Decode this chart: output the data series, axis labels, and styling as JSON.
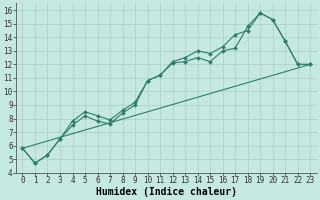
{
  "xlabel": "Humidex (Indice chaleur)",
  "bg_color": "#c5e8e0",
  "line_color": "#2e7d6e",
  "grid_color": "#aacfc8",
  "xlim": [
    -0.5,
    23.5
  ],
  "ylim": [
    4,
    16.5
  ],
  "xticks": [
    0,
    1,
    2,
    3,
    4,
    5,
    6,
    7,
    8,
    9,
    10,
    11,
    12,
    13,
    14,
    15,
    16,
    17,
    18,
    19,
    20,
    21,
    22,
    23
  ],
  "yticks": [
    4,
    5,
    6,
    7,
    8,
    9,
    10,
    11,
    12,
    13,
    14,
    15,
    16
  ],
  "line1_x": [
    0,
    1,
    2,
    3,
    4,
    5,
    6,
    7,
    8,
    9,
    10,
    11,
    12,
    13,
    14,
    15,
    16,
    17,
    18,
    19,
    20,
    21,
    22,
    23
  ],
  "line1_y": [
    5.8,
    4.7,
    5.3,
    6.5,
    7.5,
    8.2,
    7.8,
    7.6,
    8.4,
    9.0,
    10.8,
    11.2,
    12.1,
    12.2,
    12.5,
    12.2,
    13.0,
    13.2,
    14.8,
    15.8,
    15.3,
    13.7,
    12.0,
    12.0
  ],
  "line2_x": [
    0,
    1,
    2,
    3,
    4,
    5,
    6,
    7,
    8,
    9,
    10,
    11,
    12,
    13,
    14,
    15,
    16,
    17,
    18,
    19,
    20,
    21,
    22,
    23
  ],
  "line2_y": [
    5.8,
    4.7,
    5.3,
    6.5,
    7.8,
    8.5,
    8.2,
    7.9,
    8.6,
    9.2,
    10.8,
    11.2,
    12.2,
    12.5,
    13.0,
    12.8,
    13.3,
    14.2,
    14.5,
    15.8,
    15.3,
    13.7,
    12.0,
    12.0
  ],
  "line3_x": [
    0,
    23
  ],
  "line3_y": [
    5.8,
    12.0
  ],
  "tick_fontsize": 5.5,
  "label_fontsize": 7,
  "label_fontweight": "bold"
}
